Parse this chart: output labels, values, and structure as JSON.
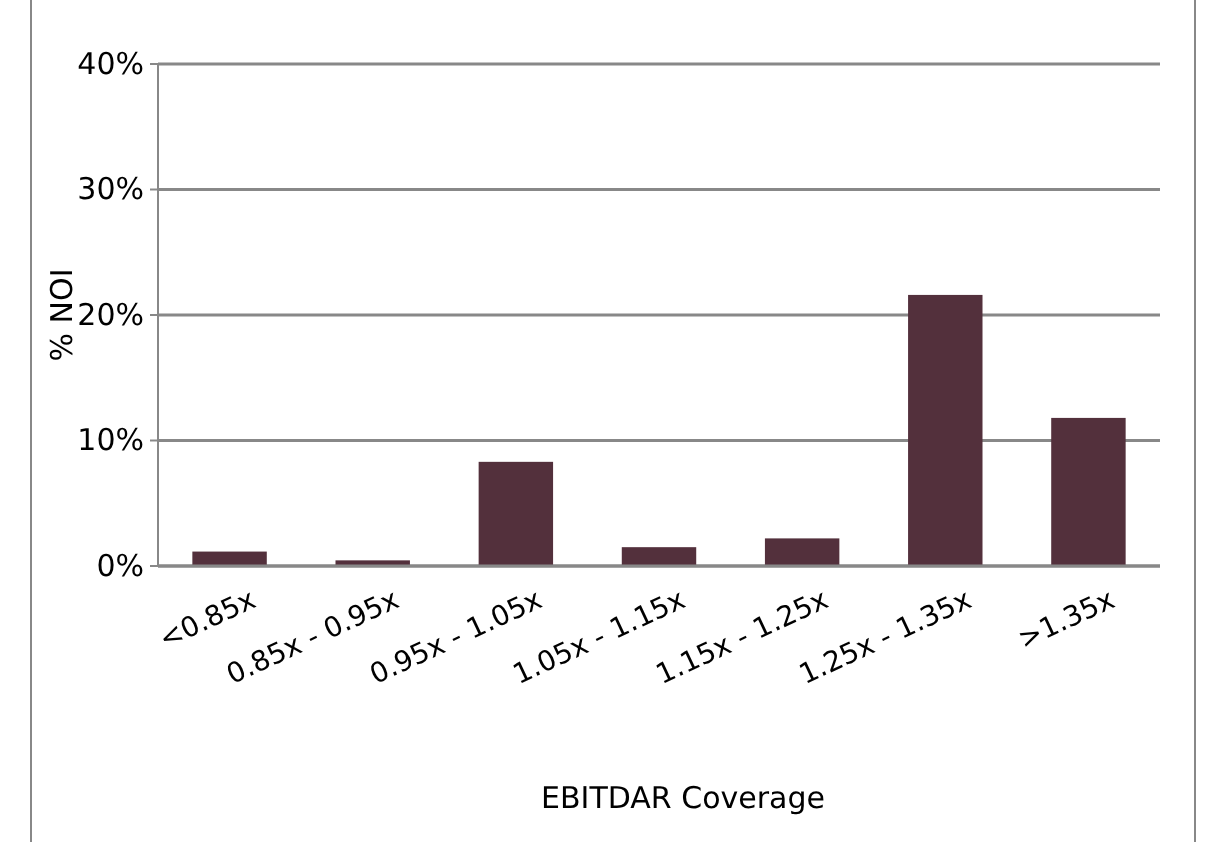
{
  "chart_data": {
    "type": "bar",
    "xlabel": "EBITDAR Coverage",
    "ylabel": "% NOI",
    "categories": [
      "<0.85x",
      "0.85x - 0.95x",
      "0.95x - 1.05x",
      "1.05x - 1.15x",
      "1.15x - 1.25x",
      "1.25x - 1.35x",
      ">1.35x"
    ],
    "values": [
      1.15,
      0.45,
      8.3,
      1.5,
      2.2,
      21.6,
      11.8
    ],
    "color": "#53303c",
    "ylim": [
      0,
      40
    ],
    "yticks": [
      {
        "value": 0,
        "label": "0%"
      },
      {
        "value": 10,
        "label": "10%"
      },
      {
        "value": 20,
        "label": "20%"
      },
      {
        "value": 30,
        "label": "30%"
      },
      {
        "value": 40,
        "label": "40%"
      }
    ],
    "grid": "y"
  }
}
